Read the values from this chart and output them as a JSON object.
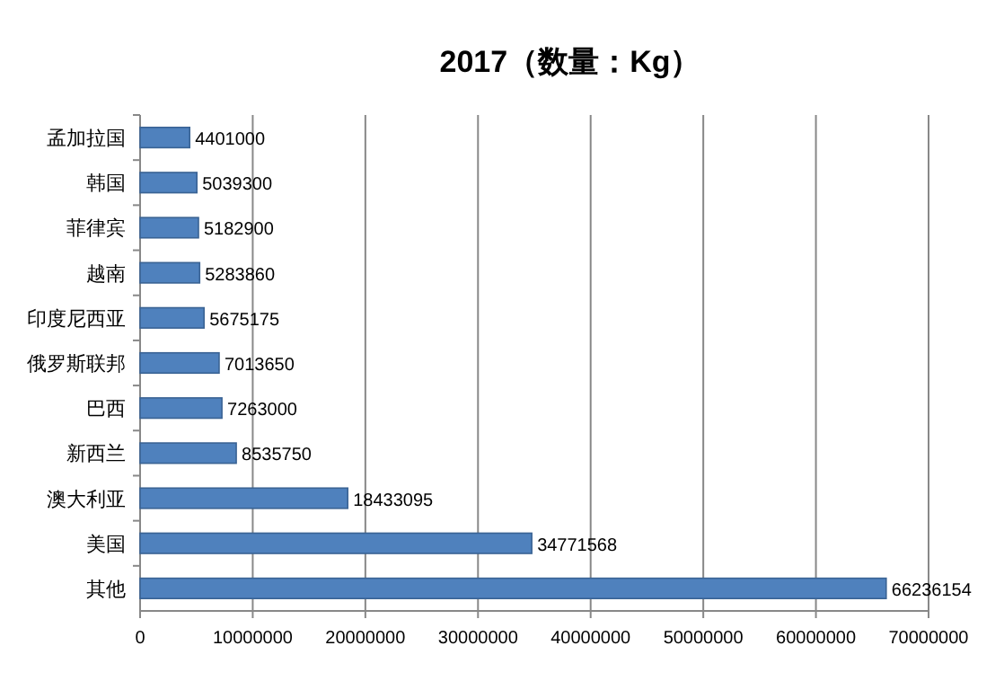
{
  "chart_data": {
    "type": "bar",
    "orientation": "horizontal",
    "title": "2017（数量：Kg）",
    "categories": [
      "孟加拉国",
      "韩国",
      "菲律宾",
      "越南",
      "印度尼西亚",
      "俄罗斯联邦",
      "巴西",
      "新西兰",
      "澳大利亚",
      "美国",
      "其他"
    ],
    "values": [
      4401000,
      5039300,
      5182900,
      5283860,
      5675175,
      7013650,
      7263000,
      8535750,
      18433095,
      34771568,
      66236154
    ],
    "color": "#4f81bd",
    "xlim": [
      0,
      70000000
    ],
    "xticks": [
      0,
      10000000,
      20000000,
      30000000,
      40000000,
      50000000,
      60000000,
      70000000
    ],
    "grid": "x",
    "data_labels": true
  }
}
